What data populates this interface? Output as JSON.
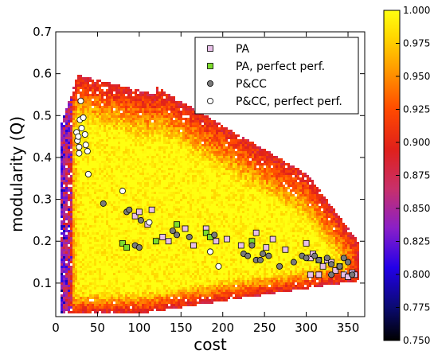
{
  "chart_data": {
    "type": "scatter",
    "xlabel": "cost",
    "ylabel": "modularity (Q)",
    "xlim": [
      0,
      370
    ],
    "ylim": [
      0.02,
      0.7
    ],
    "xticks": [
      "0",
      "50",
      "100",
      "150",
      "200",
      "250",
      "300",
      "350"
    ],
    "yticks": [
      "0.1",
      "0.2",
      "0.3",
      "0.4",
      "0.5",
      "0.6",
      "0.7"
    ],
    "legend_position": "top-right",
    "background": {
      "type": "heatmap",
      "colormap": "gnuplot-like (black-blue-red-yellow)",
      "vmin": 0.75,
      "vmax": 1.0,
      "colorbar_ticks": [
        "0.750",
        "0.775",
        "0.800",
        "0.825",
        "0.850",
        "0.875",
        "0.900",
        "0.925",
        "0.950",
        "0.975",
        "1.000"
      ]
    },
    "series": [
      {
        "name": "PA",
        "marker": "square",
        "color": "#e8bfe8",
        "points": [
          [
            95,
            0.26
          ],
          [
            100,
            0.27
          ],
          [
            110,
            0.24
          ],
          [
            115,
            0.275
          ],
          [
            128,
            0.21
          ],
          [
            135,
            0.2
          ],
          [
            155,
            0.23
          ],
          [
            165,
            0.19
          ],
          [
            180,
            0.23
          ],
          [
            192,
            0.2
          ],
          [
            205,
            0.205
          ],
          [
            222,
            0.19
          ],
          [
            240,
            0.22
          ],
          [
            252,
            0.185
          ],
          [
            260,
            0.205
          ],
          [
            275,
            0.18
          ],
          [
            300,
            0.195
          ],
          [
            305,
            0.16
          ],
          [
            308,
            0.17
          ],
          [
            315,
            0.155
          ],
          [
            320,
            0.14
          ],
          [
            325,
            0.155
          ],
          [
            330,
            0.15
          ],
          [
            335,
            0.13
          ],
          [
            340,
            0.14
          ],
          [
            345,
            0.12
          ],
          [
            350,
            0.115
          ],
          [
            355,
            0.125
          ],
          [
            358,
            0.12
          ],
          [
            305,
            0.12
          ],
          [
            315,
            0.12
          ]
        ]
      },
      {
        "name": "PA, perfect perf.",
        "marker": "square",
        "color": "#7ddc2c",
        "points": [
          [
            80,
            0.195
          ],
          [
            85,
            0.185
          ],
          [
            120,
            0.2
          ],
          [
            145,
            0.24
          ],
          [
            180,
            0.22
          ],
          [
            185,
            0.21
          ],
          [
            235,
            0.2
          ]
        ]
      },
      {
        "name": "P&CC",
        "marker": "circle",
        "color": "#7a7a7a",
        "points": [
          [
            57,
            0.29
          ],
          [
            85,
            0.27
          ],
          [
            88,
            0.275
          ],
          [
            95,
            0.19
          ],
          [
            100,
            0.185
          ],
          [
            102,
            0.25
          ],
          [
            140,
            0.225
          ],
          [
            145,
            0.215
          ],
          [
            160,
            0.21
          ],
          [
            190,
            0.215
          ],
          [
            225,
            0.17
          ],
          [
            230,
            0.165
          ],
          [
            235,
            0.19
          ],
          [
            240,
            0.155
          ],
          [
            245,
            0.155
          ],
          [
            248,
            0.17
          ],
          [
            255,
            0.165
          ],
          [
            268,
            0.14
          ],
          [
            285,
            0.15
          ],
          [
            295,
            0.165
          ],
          [
            300,
            0.16
          ],
          [
            310,
            0.165
          ],
          [
            315,
            0.155
          ],
          [
            325,
            0.16
          ],
          [
            330,
            0.145
          ],
          [
            340,
            0.14
          ],
          [
            345,
            0.16
          ],
          [
            350,
            0.15
          ],
          [
            355,
            0.12
          ],
          [
            330,
            0.12
          ]
        ]
      },
      {
        "name": "P&CC, perfect perf.",
        "marker": "circle",
        "color": "#ffffff",
        "points": [
          [
            25,
            0.46
          ],
          [
            26,
            0.44
          ],
          [
            27,
            0.45
          ],
          [
            28,
            0.425
          ],
          [
            28,
            0.41
          ],
          [
            29,
            0.49
          ],
          [
            30,
            0.535
          ],
          [
            31,
            0.47
          ],
          [
            33,
            0.495
          ],
          [
            35,
            0.455
          ],
          [
            36,
            0.43
          ],
          [
            38,
            0.415
          ],
          [
            39,
            0.36
          ],
          [
            80,
            0.32
          ],
          [
            112,
            0.245
          ],
          [
            185,
            0.175
          ],
          [
            195,
            0.14
          ]
        ]
      }
    ]
  }
}
